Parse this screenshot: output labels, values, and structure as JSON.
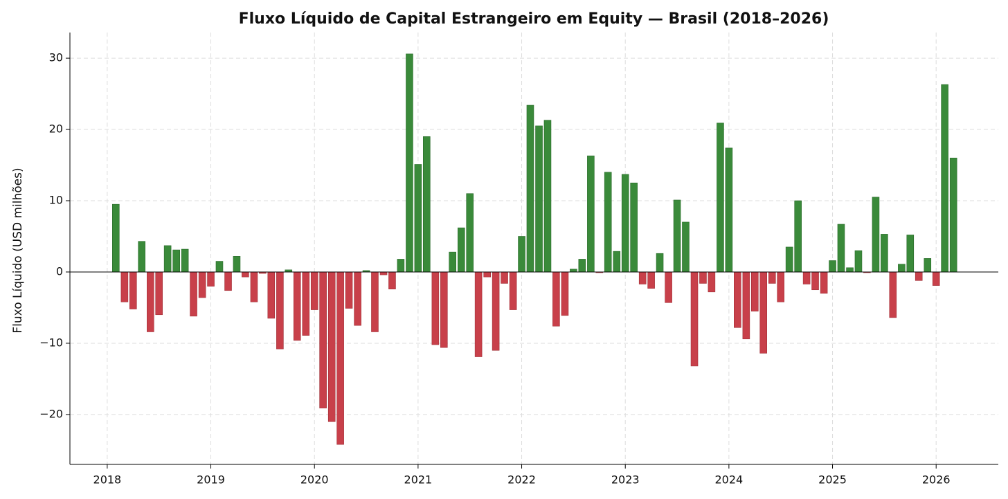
{
  "chart_data": {
    "type": "bar",
    "title": "Fluxo Líquido de Capital Estrangeiro em Equity — Brasil (2018–2026)",
    "y_label": "Fluxo Líquido (USD milhões)",
    "x": [
      2018.083,
      2018.167,
      2018.25,
      2018.333,
      2018.417,
      2018.5,
      2018.583,
      2018.667,
      2018.75,
      2018.833,
      2018.917,
      2019.0,
      2019.083,
      2019.167,
      2019.25,
      2019.333,
      2019.417,
      2019.5,
      2019.583,
      2019.667,
      2019.75,
      2019.833,
      2019.917,
      2020.0,
      2020.083,
      2020.167,
      2020.25,
      2020.333,
      2020.417,
      2020.5,
      2020.583,
      2020.667,
      2020.75,
      2020.833,
      2020.917,
      2021.0,
      2021.083,
      2021.167,
      2021.25,
      2021.333,
      2021.417,
      2021.5,
      2021.583,
      2021.667,
      2021.75,
      2021.833,
      2021.917,
      2022.0,
      2022.083,
      2022.167,
      2022.25,
      2022.333,
      2022.417,
      2022.5,
      2022.583,
      2022.667,
      2022.75,
      2022.833,
      2022.917,
      2023.0,
      2023.083,
      2023.167,
      2023.25,
      2023.333,
      2023.417,
      2023.5,
      2023.583,
      2023.667,
      2023.75,
      2023.833,
      2023.917,
      2024.0,
      2024.083,
      2024.167,
      2024.25,
      2024.333,
      2024.417,
      2024.5,
      2024.583,
      2024.667,
      2024.75,
      2024.833,
      2024.917,
      2025.0,
      2025.083,
      2025.167,
      2025.25,
      2025.333,
      2025.417,
      2025.5,
      2025.583,
      2025.667,
      2025.75,
      2025.833,
      2025.917,
      2026.0,
      2026.083,
      2026.167
    ],
    "values": [
      9.5,
      -4.2,
      -5.2,
      4.3,
      -8.4,
      -6,
      3.7,
      3.1,
      3.2,
      -6.2,
      -3.6,
      -2,
      1.5,
      -2.6,
      2.2,
      -0.7,
      -4.2,
      -0.2,
      -6.5,
      -10.8,
      0.3,
      -9.6,
      -8.9,
      -5.3,
      -19.1,
      -21,
      -24.2,
      -5.1,
      -7.5,
      0.2,
      -8.4,
      -0.4,
      -2.4,
      1.8,
      30.6,
      15.1,
      19,
      -10.2,
      -10.6,
      2.8,
      6.2,
      11,
      -11.9,
      -0.7,
      -11,
      -1.6,
      -5.3,
      5,
      23.4,
      20.5,
      21.3,
      -7.6,
      -6.1,
      0.4,
      1.8,
      16.3,
      -0.1,
      14,
      2.9,
      13.7,
      12.5,
      -1.7,
      -2.3,
      2.6,
      -4.3,
      10.1,
      7,
      -13.2,
      -1.6,
      -2.8,
      20.9,
      17.4,
      -7.8,
      -9.4,
      -5.5,
      -11.4,
      -1.6,
      -4.2,
      3.5,
      10,
      -1.7,
      -2.5,
      -3,
      1.6,
      6.7,
      0.6,
      3,
      -0.1,
      10.5,
      5.3,
      -6.4,
      1.1,
      5.2,
      -1.2,
      1.9,
      -1.9,
      26.3,
      16
    ],
    "positive_color": "#3a8a3a",
    "negative_color": "#c8404a",
    "xlim": [
      2017.64,
      2026.6
    ],
    "xticks": [
      2018,
      2019,
      2020,
      2021,
      2022,
      2023,
      2024,
      2025,
      2026
    ],
    "ylim": [
      -27,
      33.6
    ],
    "yticks": [
      {
        "value": -20,
        "label": "−20"
      },
      {
        "value": -10,
        "label": "−10"
      },
      0,
      10,
      20,
      30
    ],
    "grid": true
  }
}
